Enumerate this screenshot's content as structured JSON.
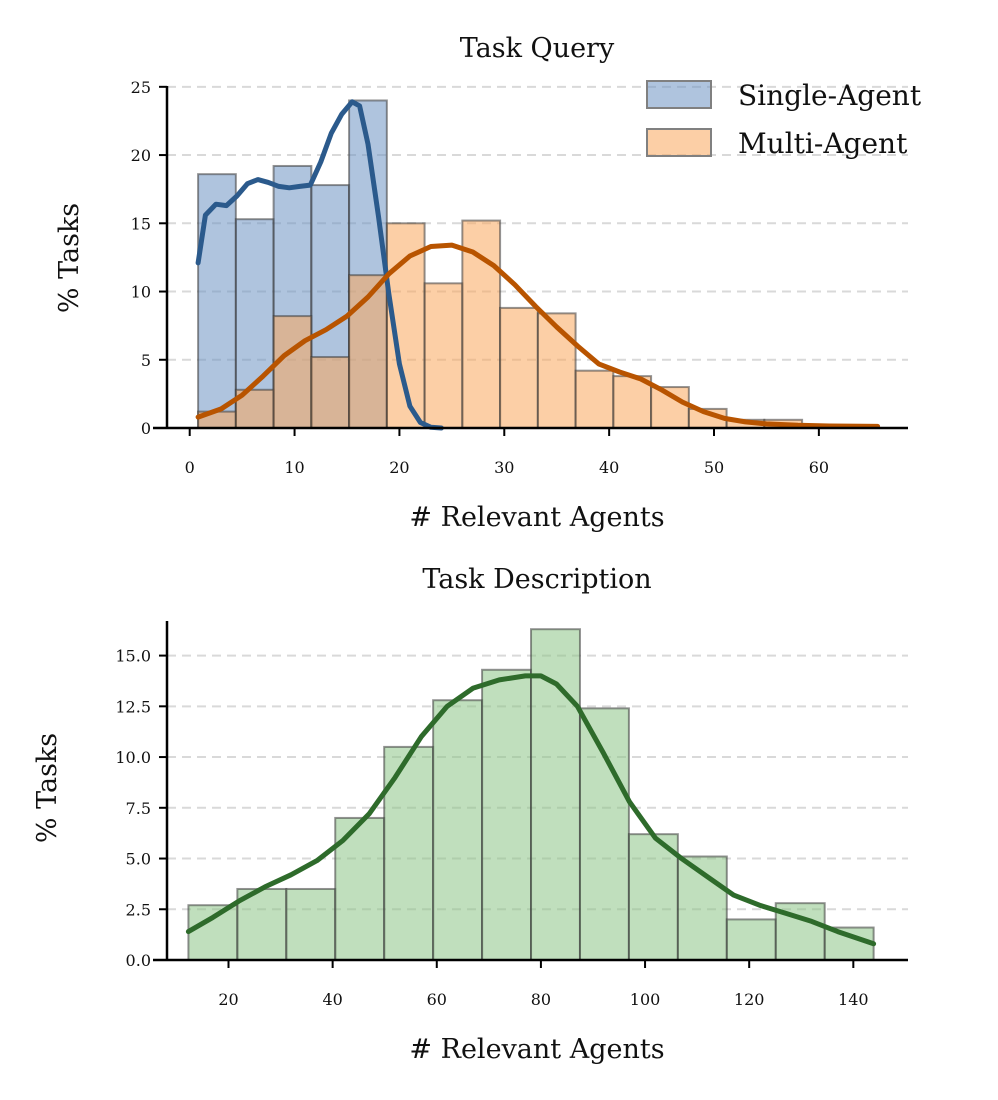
{
  "chart_data": [
    {
      "type": "bar",
      "title": "Task Query",
      "xlabel": "# Relevant Agents",
      "ylabel": "% Tasks",
      "xlim": [
        -3.5,
        68.5
      ],
      "ylim": [
        0,
        25.5
      ],
      "xticks": [
        0,
        10,
        20,
        30,
        40,
        50,
        60
      ],
      "yticks": [
        0,
        5,
        10,
        15,
        20,
        25
      ],
      "grid": "y-dashed",
      "legend_placement": "top-right",
      "series": [
        {
          "name": "Single-Agent",
          "color": "#6d93c2",
          "line_color": "#2b5a8c",
          "bins": [
            [
              0.8,
              4.4,
              18.6
            ],
            [
              4.4,
              8.0,
              15.3
            ],
            [
              8.0,
              11.6,
              19.2
            ],
            [
              11.6,
              15.2,
              17.8
            ],
            [
              15.2,
              18.8,
              24.0
            ]
          ],
          "kde": [
            [
              0.8,
              12.1
            ],
            [
              1.5,
              15.6
            ],
            [
              2.5,
              16.4
            ],
            [
              3.5,
              16.3
            ],
            [
              4.5,
              17.0
            ],
            [
              5.5,
              17.9
            ],
            [
              6.5,
              18.2
            ],
            [
              7.5,
              18.0
            ],
            [
              8.5,
              17.7
            ],
            [
              9.5,
              17.6
            ],
            [
              10.5,
              17.7
            ],
            [
              11.5,
              17.8
            ],
            [
              12.5,
              19.5
            ],
            [
              13.5,
              21.6
            ],
            [
              14.5,
              23.0
            ],
            [
              15.5,
              23.9
            ],
            [
              16.2,
              23.6
            ],
            [
              17.0,
              20.8
            ],
            [
              18.0,
              15.5
            ],
            [
              19.0,
              9.8
            ],
            [
              20.0,
              4.7
            ],
            [
              21.0,
              1.6
            ],
            [
              22.0,
              0.4
            ],
            [
              23.0,
              0.05
            ],
            [
              24.0,
              0.0
            ]
          ]
        },
        {
          "name": "Multi-Agent",
          "color": "#f9a85c",
          "line_color": "#b85400",
          "bins": [
            [
              0.8,
              4.4,
              1.2
            ],
            [
              4.4,
              8.0,
              2.8
            ],
            [
              8.0,
              11.6,
              8.2
            ],
            [
              11.6,
              15.2,
              5.2
            ],
            [
              15.2,
              18.8,
              11.2
            ],
            [
              18.8,
              22.4,
              15.0
            ],
            [
              22.4,
              26.0,
              10.6
            ],
            [
              26.0,
              29.6,
              15.2
            ],
            [
              29.6,
              33.2,
              8.8
            ],
            [
              33.2,
              36.8,
              8.4
            ],
            [
              36.8,
              40.4,
              4.2
            ],
            [
              40.4,
              44.0,
              3.8
            ],
            [
              44.0,
              47.6,
              3.0
            ],
            [
              47.6,
              51.2,
              1.4
            ],
            [
              51.2,
              54.8,
              0.6
            ],
            [
              54.8,
              58.4,
              0.6
            ],
            [
              58.4,
              62.0,
              0.2
            ],
            [
              62.0,
              65.6,
              0.2
            ]
          ],
          "kde": [
            [
              0.8,
              0.8
            ],
            [
              3.0,
              1.4
            ],
            [
              5.0,
              2.4
            ],
            [
              7.0,
              3.8
            ],
            [
              9.0,
              5.3
            ],
            [
              11.0,
              6.4
            ],
            [
              13.0,
              7.2
            ],
            [
              15.0,
              8.2
            ],
            [
              17.0,
              9.6
            ],
            [
              19.0,
              11.3
            ],
            [
              21.0,
              12.6
            ],
            [
              23.0,
              13.3
            ],
            [
              25.0,
              13.4
            ],
            [
              27.0,
              12.9
            ],
            [
              29.0,
              11.9
            ],
            [
              31.0,
              10.5
            ],
            [
              33.0,
              8.9
            ],
            [
              35.0,
              7.4
            ],
            [
              37.0,
              6.0
            ],
            [
              39.0,
              4.7
            ],
            [
              41.0,
              4.1
            ],
            [
              43.0,
              3.6
            ],
            [
              45.0,
              2.8
            ],
            [
              47.0,
              1.9
            ],
            [
              49.0,
              1.2
            ],
            [
              51.0,
              0.7
            ],
            [
              53.0,
              0.45
            ],
            [
              55.0,
              0.3
            ],
            [
              58.0,
              0.2
            ],
            [
              61.0,
              0.15
            ],
            [
              65.6,
              0.12
            ]
          ]
        }
      ]
    },
    {
      "type": "bar",
      "title": "Task Description",
      "xlabel": "# Relevant Agents",
      "ylabel": "% Tasks",
      "xlim": [
        5.5,
        150.5
      ],
      "ylim": [
        0,
        17
      ],
      "xticks": [
        20,
        40,
        60,
        80,
        100,
        120,
        140
      ],
      "yticks": [
        0,
        2.5,
        5.0,
        7.5,
        10.0,
        12.5,
        15.0
      ],
      "ytick_labels": [
        "0.0",
        "2.5",
        "5.0",
        "7.5",
        "10.0",
        "12.5",
        "15.0"
      ],
      "grid": "y-dashed",
      "series": [
        {
          "color": "#8cc487",
          "line_color": "#2e6b2b",
          "bins": [
            [
              12.3,
              21.7,
              2.7
            ],
            [
              21.7,
              31.1,
              3.5
            ],
            [
              31.1,
              40.5,
              3.5
            ],
            [
              40.5,
              49.9,
              7.0
            ],
            [
              49.9,
              59.3,
              10.5
            ],
            [
              59.3,
              68.7,
              12.8
            ],
            [
              68.7,
              78.1,
              14.3
            ],
            [
              78.1,
              87.5,
              16.3
            ],
            [
              87.5,
              96.9,
              12.4
            ],
            [
              96.9,
              106.3,
              6.2
            ],
            [
              106.3,
              115.7,
              5.1
            ],
            [
              115.7,
              125.1,
              2.0
            ],
            [
              125.1,
              134.5,
              2.8
            ],
            [
              134.5,
              143.9,
              1.6
            ]
          ],
          "kde": [
            [
              12.3,
              1.4
            ],
            [
              17.0,
              2.1
            ],
            [
              22.0,
              2.9
            ],
            [
              27.0,
              3.6
            ],
            [
              32.0,
              4.2
            ],
            [
              37.0,
              4.9
            ],
            [
              42.0,
              5.9
            ],
            [
              47.0,
              7.2
            ],
            [
              52.0,
              9.0
            ],
            [
              57.0,
              11.0
            ],
            [
              62.0,
              12.5
            ],
            [
              67.0,
              13.4
            ],
            [
              72.0,
              13.8
            ],
            [
              77.0,
              14.0
            ],
            [
              80.0,
              14.0
            ],
            [
              83.0,
              13.6
            ],
            [
              87.0,
              12.5
            ],
            [
              92.0,
              10.2
            ],
            [
              97.0,
              7.8
            ],
            [
              102.0,
              6.0
            ],
            [
              107.0,
              5.0
            ],
            [
              112.0,
              4.1
            ],
            [
              117.0,
              3.2
            ],
            [
              122.0,
              2.7
            ],
            [
              127.0,
              2.3
            ],
            [
              132.0,
              1.9
            ],
            [
              137.0,
              1.4
            ],
            [
              143.9,
              0.8
            ]
          ]
        }
      ]
    }
  ]
}
